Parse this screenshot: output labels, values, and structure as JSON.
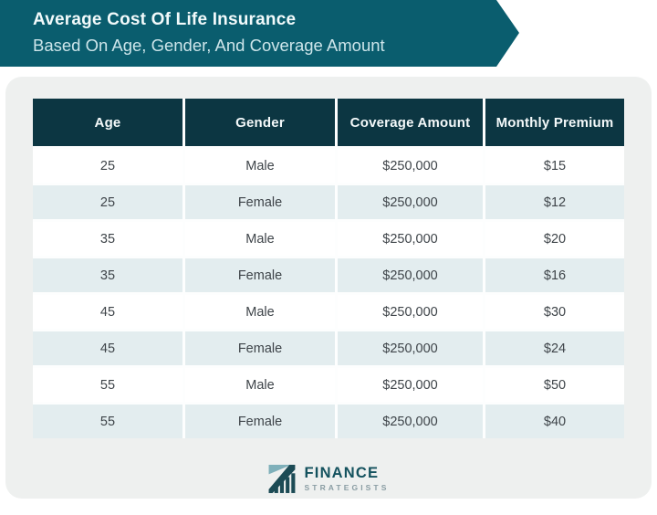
{
  "banner": {
    "title": "Average Cost Of Life Insurance",
    "subtitle": "Based On Age, Gender, And Coverage Amount"
  },
  "chart_data": {
    "type": "table",
    "title": "Average Cost Of Life Insurance Based On Age, Gender, And Coverage Amount",
    "columns": [
      "Age",
      "Gender",
      "Coverage Amount",
      "Monthly Premium"
    ],
    "rows": [
      [
        "25",
        "Male",
        "$250,000",
        "$15"
      ],
      [
        "25",
        "Female",
        "$250,000",
        "$12"
      ],
      [
        "35",
        "Male",
        "$250,000",
        "$20"
      ],
      [
        "35",
        "Female",
        "$250,000",
        "$16"
      ],
      [
        "45",
        "Male",
        "$250,000",
        "$30"
      ],
      [
        "45",
        "Female",
        "$250,000",
        "$24"
      ],
      [
        "55",
        "Male",
        "$250,000",
        "$50"
      ],
      [
        "55",
        "Female",
        "$250,000",
        "$40"
      ]
    ]
  },
  "logo": {
    "brand": "FINANCE",
    "tagline": "STRATEGISTS"
  },
  "colors": {
    "banner_teal": "#0a5d6e",
    "header_dark": "#0c3642",
    "row_alt": "#e3edef",
    "card_bg": "#eef0ef",
    "body_text": "#3e4449",
    "logo_teal": "#14525e"
  }
}
